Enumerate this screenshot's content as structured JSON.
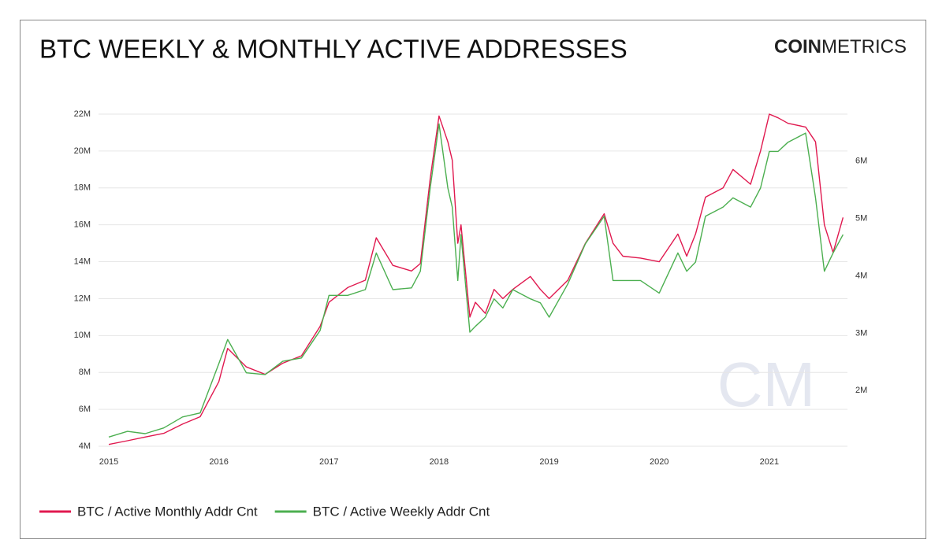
{
  "chart_data": {
    "type": "line",
    "title": "BTC WEEKLY & MONTHLY ACTIVE ADDRESSES",
    "brand": [
      "COIN",
      "METRICS"
    ],
    "watermark": "CM",
    "x": [
      2015.0,
      2015.17,
      2015.33,
      2015.5,
      2015.67,
      2015.83,
      2016.0,
      2016.08,
      2016.25,
      2016.42,
      2016.58,
      2016.75,
      2016.92,
      2017.0,
      2017.17,
      2017.33,
      2017.43,
      2017.58,
      2017.75,
      2017.83,
      2017.92,
      2018.0,
      2018.08,
      2018.12,
      2018.17,
      2018.2,
      2018.28,
      2018.33,
      2018.42,
      2018.5,
      2018.58,
      2018.67,
      2018.83,
      2018.92,
      2019.0,
      2019.17,
      2019.33,
      2019.5,
      2019.58,
      2019.67,
      2019.83,
      2020.0,
      2020.17,
      2020.25,
      2020.33,
      2020.42,
      2020.58,
      2020.67,
      2020.83,
      2020.92,
      2021.0,
      2021.08,
      2021.17,
      2021.33,
      2021.42,
      2021.5,
      2021.58,
      2021.67
    ],
    "series": [
      {
        "name": "BTC / Active Monthly Addr Cnt",
        "color": "#e0194f",
        "values": [
          4.1,
          4.3,
          4.5,
          4.7,
          5.2,
          5.6,
          7.5,
          9.3,
          8.3,
          7.9,
          8.5,
          8.9,
          10.5,
          11.8,
          12.6,
          13.0,
          15.3,
          13.8,
          13.5,
          13.9,
          18.5,
          21.9,
          20.5,
          19.5,
          15.0,
          16.0,
          11.0,
          11.8,
          11.2,
          12.5,
          12.0,
          12.5,
          13.2,
          12.5,
          12.0,
          13.0,
          15.0,
          16.6,
          15.0,
          14.3,
          14.2,
          14.0,
          15.5,
          14.3,
          15.5,
          17.5,
          18.0,
          19.0,
          18.2,
          20.0,
          22.0,
          21.8,
          21.5,
          21.3,
          20.5,
          16.0,
          14.5,
          16.4
        ]
      },
      {
        "name": "BTC / Active Weekly Addr Cnt",
        "color": "#4caf50",
        "axis": "y2",
        "values": [
          1.19,
          1.29,
          1.25,
          1.35,
          1.54,
          1.61,
          2.47,
          2.89,
          2.31,
          2.28,
          2.51,
          2.57,
          3.05,
          3.66,
          3.66,
          3.76,
          4.4,
          3.76,
          3.79,
          4.08,
          5.53,
          6.65,
          5.53,
          5.2,
          3.92,
          4.72,
          3.02,
          3.12,
          3.28,
          3.6,
          3.44,
          3.76,
          3.6,
          3.53,
          3.28,
          3.86,
          4.56,
          5.04,
          3.92,
          3.92,
          3.92,
          3.7,
          4.4,
          4.08,
          4.24,
          5.04,
          5.2,
          5.36,
          5.2,
          5.53,
          6.17,
          6.17,
          6.33,
          6.49,
          5.36,
          4.08,
          4.4,
          4.72
        ]
      }
    ],
    "xlim": [
      2014.907,
      2021.71
    ],
    "xticks": [
      2015,
      2016,
      2017,
      2018,
      2019,
      2020,
      2021
    ],
    "ylim": [
      4,
      22
    ],
    "yticks": [
      {
        "value": 4,
        "label": "4M"
      },
      {
        "value": 6,
        "label": "6M"
      },
      {
        "value": 8,
        "label": "8M"
      },
      {
        "value": 10,
        "label": "10M"
      },
      {
        "value": 12,
        "label": "12M"
      },
      {
        "value": 14,
        "label": "14M"
      },
      {
        "value": 16,
        "label": "16M"
      },
      {
        "value": 18,
        "label": "18M"
      },
      {
        "value": 20,
        "label": "20M"
      },
      {
        "value": 22,
        "label": "22M"
      }
    ],
    "y2lim": [
      1.03,
      6.82
    ],
    "y2ticks": [
      {
        "value": 2,
        "label": "2M"
      },
      {
        "value": 3,
        "label": "3M"
      },
      {
        "value": 4,
        "label": "4M"
      },
      {
        "value": 5,
        "label": "5M"
      },
      {
        "value": 6,
        "label": "6M"
      }
    ],
    "grid": true,
    "legend": "bottom-left"
  }
}
